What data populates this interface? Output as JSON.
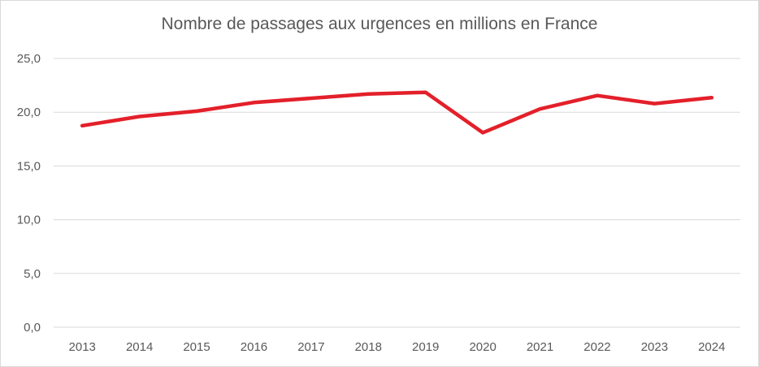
{
  "chart_data": {
    "type": "line",
    "title": "Nombre de passages aux urgences en millions en France",
    "xlabel": "",
    "ylabel": "",
    "categories": [
      "2013",
      "2014",
      "2015",
      "2016",
      "2017",
      "2018",
      "2019",
      "2020",
      "2021",
      "2022",
      "2023",
      "2024"
    ],
    "series": [
      {
        "values": [
          18.75,
          19.6,
          20.1,
          20.9,
          21.3,
          21.7,
          21.85,
          18.1,
          20.3,
          21.55,
          20.8,
          21.35
        ]
      }
    ],
    "ylim": [
      0,
      25
    ],
    "yticks": [
      0,
      5,
      10,
      15,
      20,
      25
    ],
    "ytick_labels": [
      "0,0",
      "5,0",
      "10,0",
      "15,0",
      "20,0",
      "25,0"
    ],
    "grid": true,
    "legend": "none",
    "line_color": "#e3202a",
    "grid_color": "#d9d9d9",
    "text_color": "#595959"
  }
}
